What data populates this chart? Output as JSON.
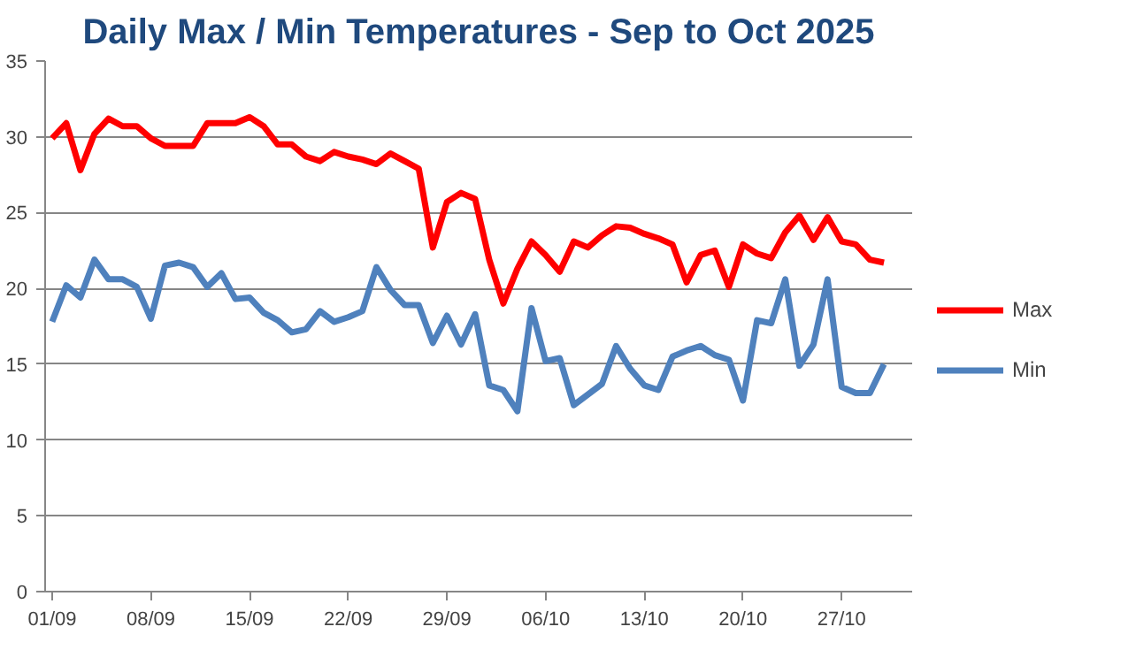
{
  "chart_data": {
    "type": "line",
    "title": "Daily Max / Min Temperatures - Sep to Oct 2025",
    "x": [
      "2025-09-01",
      "2025-09-02",
      "2025-09-03",
      "2025-09-04",
      "2025-09-05",
      "2025-09-06",
      "2025-09-07",
      "2025-09-08",
      "2025-09-09",
      "2025-09-10",
      "2025-09-11",
      "2025-09-12",
      "2025-09-13",
      "2025-09-14",
      "2025-09-15",
      "2025-09-16",
      "2025-09-17",
      "2025-09-18",
      "2025-09-19",
      "2025-09-20",
      "2025-09-21",
      "2025-09-22",
      "2025-09-23",
      "2025-09-24",
      "2025-09-25",
      "2025-09-26",
      "2025-09-27",
      "2025-09-28",
      "2025-09-29",
      "2025-09-30",
      "2025-10-01",
      "2025-10-02",
      "2025-10-03",
      "2025-10-04",
      "2025-10-05",
      "2025-10-06",
      "2025-10-07",
      "2025-10-08",
      "2025-10-09",
      "2025-10-10",
      "2025-10-11",
      "2025-10-12",
      "2025-10-13",
      "2025-10-14",
      "2025-10-15",
      "2025-10-16",
      "2025-10-17",
      "2025-10-18",
      "2025-10-19",
      "2025-10-20",
      "2025-10-21",
      "2025-10-22",
      "2025-10-23",
      "2025-10-24",
      "2025-10-25",
      "2025-10-26",
      "2025-10-27",
      "2025-10-28",
      "2025-10-29",
      "2025-10-30"
    ],
    "series": [
      {
        "name": "Max",
        "color": "#ff0000",
        "values": [
          29.9,
          30.9,
          27.8,
          30.2,
          31.2,
          30.7,
          30.7,
          29.9,
          29.4,
          29.4,
          29.4,
          30.9,
          30.9,
          30.9,
          31.3,
          30.7,
          29.5,
          29.5,
          28.7,
          28.4,
          29.0,
          28.7,
          28.5,
          28.2,
          28.9,
          28.4,
          27.9,
          22.7,
          25.7,
          26.3,
          25.9,
          21.9,
          19.0,
          21.3,
          23.1,
          22.2,
          21.1,
          23.1,
          22.7,
          23.5,
          24.1,
          24.0,
          23.6,
          23.3,
          22.9,
          20.4,
          22.2,
          22.5,
          20.1,
          22.9,
          22.3,
          22.0,
          23.7,
          24.8,
          23.2,
          24.7,
          23.1,
          22.9,
          21.9,
          21.7
        ]
      },
      {
        "name": "Min",
        "color": "#4f81bd",
        "values": [
          17.8,
          20.2,
          19.4,
          21.9,
          20.6,
          20.6,
          20.1,
          18.0,
          21.5,
          21.7,
          21.4,
          20.1,
          21.0,
          19.3,
          19.4,
          18.4,
          17.9,
          17.1,
          17.3,
          18.5,
          17.8,
          18.1,
          18.5,
          21.4,
          19.9,
          18.9,
          18.9,
          16.4,
          18.2,
          16.3,
          18.3,
          13.6,
          13.3,
          11.9,
          18.7,
          15.2,
          15.4,
          12.3,
          13.0,
          13.7,
          16.2,
          14.7,
          13.6,
          13.3,
          15.5,
          15.9,
          16.2,
          15.6,
          15.3,
          12.6,
          17.9,
          17.7,
          20.6,
          14.9,
          16.3,
          20.6,
          13.5,
          13.1,
          13.1,
          15.0
        ]
      }
    ],
    "xlim": [
      "2025-08-31T12:00",
      "2025-11-01T00:00"
    ],
    "xticks": [
      {
        "value": "2025-09-01",
        "label": "01/09"
      },
      {
        "value": "2025-09-08",
        "label": "08/09"
      },
      {
        "value": "2025-09-15",
        "label": "15/09"
      },
      {
        "value": "2025-09-22",
        "label": "22/09"
      },
      {
        "value": "2025-09-29",
        "label": "29/09"
      },
      {
        "value": "2025-10-06",
        "label": "06/10"
      },
      {
        "value": "2025-10-13",
        "label": "13/10"
      },
      {
        "value": "2025-10-20",
        "label": "20/10"
      },
      {
        "value": "2025-10-27",
        "label": "27/10"
      }
    ],
    "ylim": [
      0,
      35
    ],
    "yticks": [
      0,
      5,
      10,
      15,
      20,
      25,
      30,
      35
    ],
    "grid": "y",
    "legend": "right",
    "line_style": "solid"
  }
}
